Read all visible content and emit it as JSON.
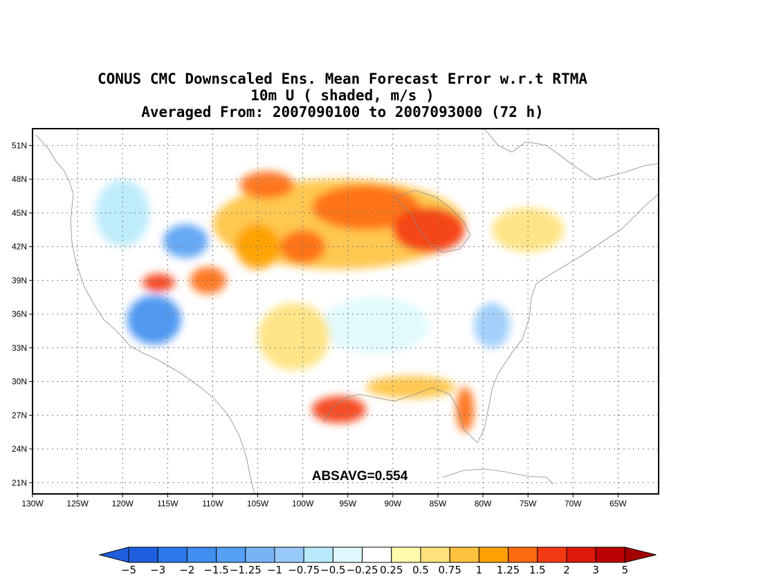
{
  "title": {
    "line1": "CONUS CMC Downscaled Ens. Mean Forecast Error w.r.t RTMA",
    "line2": "10m U ( shaded, m/s )",
    "line3": "Averaged From: 2007090100 to 2007093000 (72 h)"
  },
  "map": {
    "annotation": "ABSAVG=0.554",
    "lat_labels": [
      "51N",
      "48N",
      "45N",
      "42N",
      "39N",
      "36N",
      "33N",
      "30N",
      "27N",
      "24N",
      "21N"
    ],
    "lon_labels": [
      "130W",
      "125W",
      "120W",
      "115W",
      "110W",
      "105W",
      "100W",
      "95W",
      "90W",
      "85W",
      "80W",
      "75W",
      "70W",
      "65W"
    ],
    "lat_range": [
      20,
      52.5
    ],
    "lon_range": [
      130,
      60.5
    ]
  },
  "colorbar": {
    "colors": [
      "#1f5fdf",
      "#2b79ea",
      "#3f8ef0",
      "#55a0f3",
      "#76b4f6",
      "#98cbf9",
      "#b8eafb",
      "#def9fd",
      "#ffffff",
      "#fffaac",
      "#ffe27b",
      "#ffc23e",
      "#ffa000",
      "#ff6b10",
      "#f43a12",
      "#dd1a0c",
      "#bb0006"
    ],
    "under_color": "#1f5fdf",
    "over_color": "#a50000",
    "labels": [
      "-5",
      "-3",
      "-2",
      "-1.5",
      "-1.25",
      "-1",
      "-0.75",
      "-0.5",
      "-0.25",
      "0.25",
      "0.5",
      "0.75",
      "1",
      "1.25",
      "1.5",
      "2",
      "3",
      "5"
    ]
  },
  "field_blobs": [
    {
      "lon": -96,
      "lat": 44,
      "rx": 14,
      "ry": 4.0,
      "color": "#ffc23e"
    },
    {
      "lon": -93,
      "lat": 45.5,
      "rx": 6,
      "ry": 2.0,
      "color": "#ff6b10"
    },
    {
      "lon": -86,
      "lat": 43.5,
      "rx": 4,
      "ry": 2.0,
      "color": "#f43a12"
    },
    {
      "lon": -104,
      "lat": 47.5,
      "rx": 3,
      "ry": 1.2,
      "color": "#ff6b10"
    },
    {
      "lon": -100,
      "lat": 42,
      "rx": 2.5,
      "ry": 1.5,
      "color": "#ff6b10"
    },
    {
      "lon": -105,
      "lat": 42,
      "rx": 2.5,
      "ry": 2.0,
      "color": "#ffa000"
    },
    {
      "lon": -116.5,
      "lat": 35.5,
      "rx": 3,
      "ry": 2.2,
      "color": "#3f8ef0"
    },
    {
      "lon": -113,
      "lat": 42.5,
      "rx": 2.5,
      "ry": 1.5,
      "color": "#55a0f3"
    },
    {
      "lon": -116,
      "lat": 38.8,
      "rx": 1.8,
      "ry": 0.8,
      "color": "#f43a12"
    },
    {
      "lon": -110.5,
      "lat": 39,
      "rx": 2,
      "ry": 1.2,
      "color": "#ff6b10"
    },
    {
      "lon": -96,
      "lat": 27.5,
      "rx": 3,
      "ry": 1.2,
      "color": "#f43a12"
    },
    {
      "lon": -82,
      "lat": 27.5,
      "rx": 1,
      "ry": 2.0,
      "color": "#ff6b10"
    },
    {
      "lon": -88,
      "lat": 29.5,
      "rx": 5,
      "ry": 1.0,
      "color": "#ffc23e"
    },
    {
      "lon": -75,
      "lat": 43.5,
      "rx": 4,
      "ry": 2.0,
      "color": "#ffe27b"
    },
    {
      "lon": -79,
      "lat": 35,
      "rx": 2,
      "ry": 2.0,
      "color": "#98cbf9"
    },
    {
      "lon": -92,
      "lat": 35,
      "rx": 6,
      "ry": 2.5,
      "color": "#def9fd"
    },
    {
      "lon": -120,
      "lat": 45,
      "rx": 3,
      "ry": 3.0,
      "color": "#b8eafb"
    },
    {
      "lon": -101,
      "lat": 34,
      "rx": 4,
      "ry": 3.0,
      "color": "#ffe27b"
    }
  ]
}
